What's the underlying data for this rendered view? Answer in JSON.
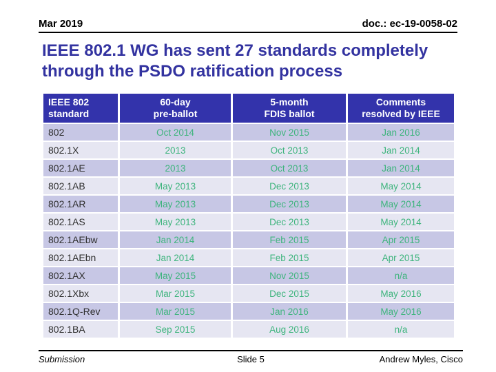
{
  "slide": {
    "header": {
      "date": "Mar 2019",
      "doc": "doc.: ec-19-0058-02"
    },
    "title": {
      "line1": "IEEE 802.1 WG has sent 27 standards completely",
      "line2": "through the PSDO ratification process"
    },
    "footer": {
      "left": "Submission",
      "center": "Slide 5",
      "right": "Andrew Myles, Cisco"
    }
  },
  "table": {
    "columns": [
      "IEEE 802\nstandard",
      "60-day\npre-ballot",
      "5-month\nFDIS ballot",
      "Comments\nresolved by IEEE"
    ],
    "rows": [
      [
        "802",
        "Oct 2014",
        "Nov 2015",
        "Jan 2016"
      ],
      [
        "802.1X",
        "2013",
        "Oct 2013",
        "Jan 2014"
      ],
      [
        "802.1AE",
        "2013",
        "Oct 2013",
        "Jan 2014"
      ],
      [
        "802.1AB",
        "May 2013",
        "Dec 2013",
        "May 2014"
      ],
      [
        "802.1AR",
        "May 2013",
        "Dec 2013",
        "May 2014"
      ],
      [
        "802.1AS",
        "May 2013",
        "Dec 2013",
        "May 2014"
      ],
      [
        "802.1AEbw",
        "Jan 2014",
        "Feb 2015",
        "Apr 2015"
      ],
      [
        "802.1AEbn",
        "Jan 2014",
        "Feb 2015",
        "Apr 2015"
      ],
      [
        "802.1AX",
        "May 2015",
        "Nov 2015",
        "n/a"
      ],
      [
        "802.1Xbx",
        "Mar 2015",
        "Dec 2015",
        "May 2016"
      ],
      [
        "802.1Q-Rev",
        "Mar 2015",
        "Jan 2016",
        "May 2016"
      ],
      [
        "802.1BA",
        "Sep 2015",
        "Aug 2016",
        "n/a"
      ]
    ]
  },
  "colors": {
    "title_blue": "#3333A0",
    "table_header_bg": "#3333AB",
    "row_dark": "#C7C7E5",
    "row_light": "#E6E6F2",
    "value_green": "#3EB47D",
    "text_black": "#000000"
  }
}
